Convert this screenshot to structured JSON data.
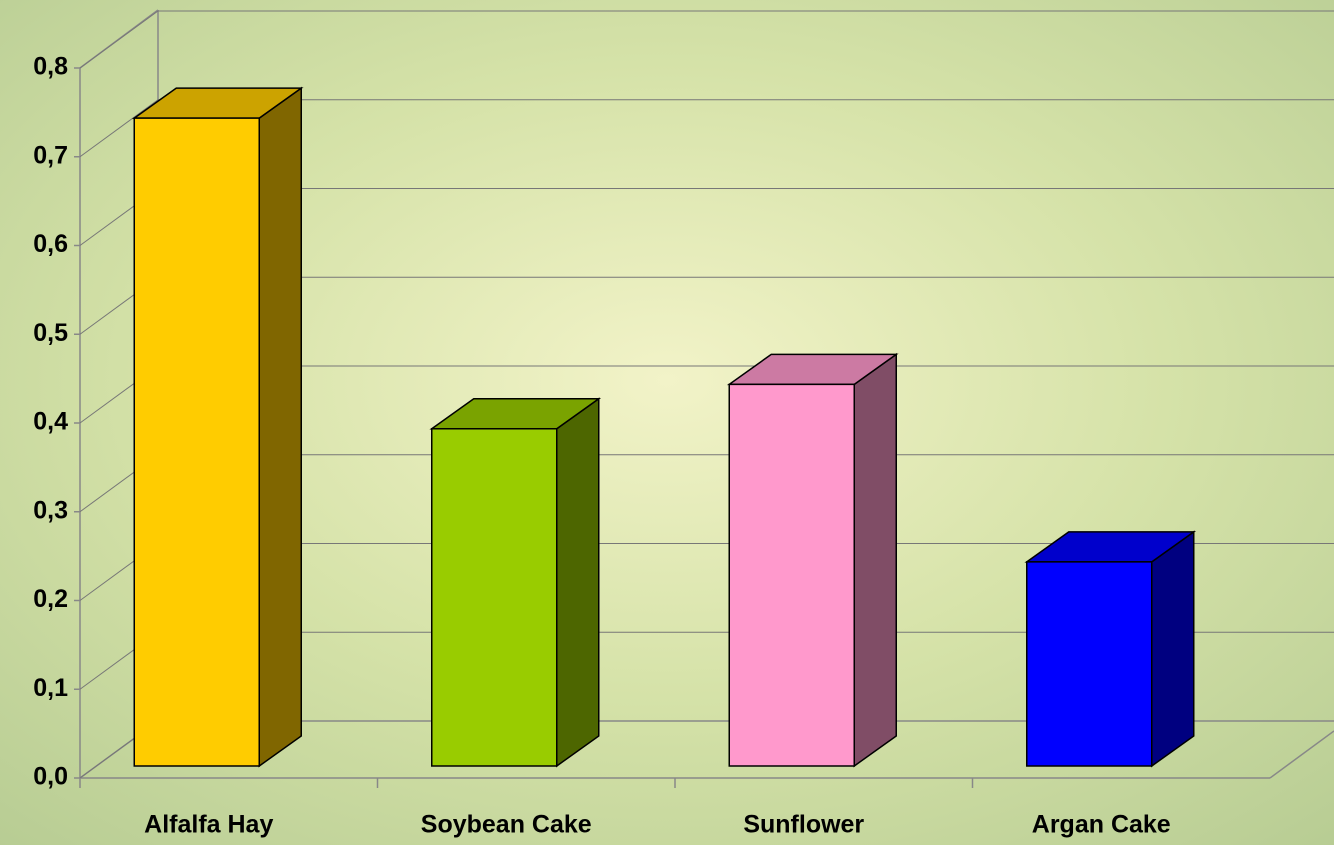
{
  "chart_data": {
    "type": "bar3d",
    "categories": [
      "Alfalfa Hay",
      "Soybean Cake",
      "Sunflower",
      "Argan Cake"
    ],
    "values": [
      0.73,
      0.38,
      0.43,
      0.23
    ],
    "colors": [
      "#ffcc00",
      "#99cc00",
      "#ff99cc",
      "#0000ff"
    ],
    "ylim": [
      0,
      0.8
    ],
    "yticks": [
      {
        "value": 0,
        "label": "0,0"
      },
      {
        "value": 0.1,
        "label": "0,1"
      },
      {
        "value": 0.2,
        "label": "0,2"
      },
      {
        "value": 0.3,
        "label": "0,3"
      },
      {
        "value": 0.4,
        "label": "0,4"
      },
      {
        "value": 0.5,
        "label": "0,5"
      },
      {
        "value": 0.6,
        "label": "0,6"
      },
      {
        "value": 0.7,
        "label": "0,7"
      },
      {
        "value": 0.8,
        "label": "0,8"
      }
    ],
    "grid": true
  }
}
